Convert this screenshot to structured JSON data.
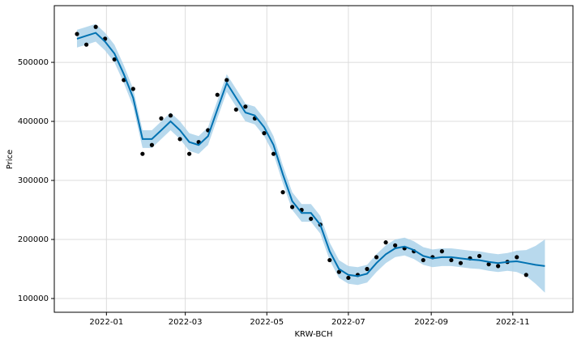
{
  "chart_data": {
    "type": "line",
    "xlabel": "KRW-BCH",
    "ylabel": "Price",
    "grid": true,
    "xlim": [
      "2021-11-23",
      "2022-12-16"
    ],
    "ylim": [
      76700,
      596000
    ],
    "xticks": [
      "2022-01",
      "2022-03",
      "2022-05",
      "2022-07",
      "2022-09",
      "2022-11"
    ],
    "yticks": [
      100000,
      200000,
      300000,
      400000,
      500000
    ],
    "observed_color": "#000000",
    "forecast_color": "#0072B2",
    "band_color": "#a6cfe8",
    "x": [
      "2021-12-10",
      "2021-12-17",
      "2021-12-24",
      "2021-12-31",
      "2022-01-07",
      "2022-01-14",
      "2022-01-21",
      "2022-01-28",
      "2022-02-04",
      "2022-02-11",
      "2022-02-18",
      "2022-02-25",
      "2022-03-04",
      "2022-03-11",
      "2022-03-18",
      "2022-03-25",
      "2022-04-01",
      "2022-04-08",
      "2022-04-15",
      "2022-04-22",
      "2022-04-29",
      "2022-05-06",
      "2022-05-13",
      "2022-05-20",
      "2022-05-27",
      "2022-06-03",
      "2022-06-10",
      "2022-06-17",
      "2022-06-24",
      "2022-07-01",
      "2022-07-08",
      "2022-07-15",
      "2022-07-22",
      "2022-07-29",
      "2022-08-05",
      "2022-08-12",
      "2022-08-19",
      "2022-08-26",
      "2022-09-02",
      "2022-09-09",
      "2022-09-16",
      "2022-09-23",
      "2022-09-30",
      "2022-10-07",
      "2022-10-14",
      "2022-10-21",
      "2022-10-28",
      "2022-11-04",
      "2022-11-11",
      "2022-11-18",
      "2022-11-25"
    ],
    "observed": [
      548000,
      530000,
      560000,
      540000,
      505000,
      470000,
      455000,
      345000,
      360000,
      405000,
      410000,
      370000,
      345000,
      365000,
      385000,
      445000,
      470000,
      420000,
      425000,
      405000,
      380000,
      345000,
      280000,
      255000,
      250000,
      235000,
      225000,
      165000,
      145000,
      135000,
      140000,
      150000,
      170000,
      195000,
      190000,
      185000,
      180000,
      165000,
      170000,
      180000,
      165000,
      160000,
      168000,
      172000,
      158000,
      155000,
      162000,
      170000,
      140000,
      null,
      null
    ],
    "forecast": [
      540000,
      545000,
      550000,
      535000,
      515000,
      480000,
      440000,
      370000,
      370000,
      385000,
      400000,
      385000,
      365000,
      360000,
      375000,
      420000,
      465000,
      440000,
      415000,
      410000,
      390000,
      360000,
      310000,
      265000,
      245000,
      245000,
      225000,
      180000,
      150000,
      140000,
      138000,
      142000,
      160000,
      175000,
      185000,
      188000,
      182000,
      172000,
      168000,
      170000,
      170000,
      168000,
      166000,
      165000,
      162000,
      160000,
      162000,
      163000,
      160000,
      157000,
      155000
    ],
    "lower": [
      525000,
      530000,
      535000,
      520000,
      500000,
      465000,
      425000,
      355000,
      355000,
      370000,
      385000,
      370000,
      350000,
      345000,
      360000,
      405000,
      450000,
      425000,
      400000,
      395000,
      375000,
      345000,
      295000,
      250000,
      230000,
      230000,
      210000,
      165000,
      135000,
      125000,
      123000,
      127000,
      145000,
      160000,
      170000,
      173000,
      167000,
      157000,
      153000,
      155000,
      155000,
      153000,
      151000,
      150000,
      147000,
      145000,
      147000,
      145000,
      138000,
      125000,
      110000
    ],
    "upper": [
      555000,
      560000,
      565000,
      550000,
      530000,
      495000,
      455000,
      385000,
      385000,
      400000,
      415000,
      400000,
      380000,
      375000,
      390000,
      435000,
      480000,
      455000,
      430000,
      425000,
      405000,
      375000,
      325000,
      280000,
      260000,
      260000,
      240000,
      195000,
      165000,
      155000,
      153000,
      157000,
      175000,
      190000,
      200000,
      203000,
      197000,
      187000,
      183000,
      185000,
      185000,
      183000,
      181000,
      180000,
      177000,
      175000,
      177000,
      181000,
      182000,
      189000,
      200000
    ]
  }
}
